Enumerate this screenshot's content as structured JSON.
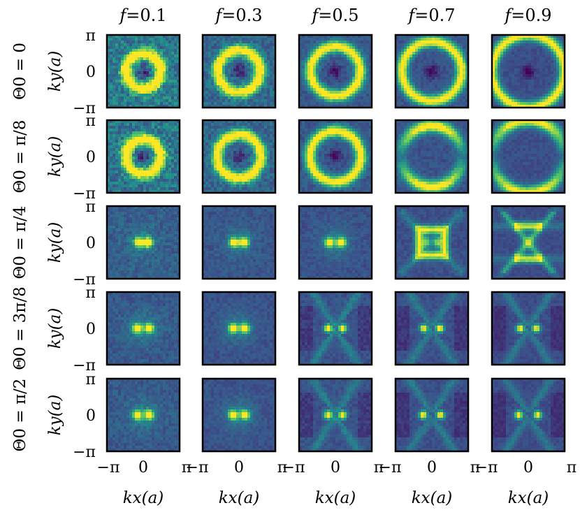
{
  "chart_data": {
    "type": "heatmap",
    "layout": "grid 5x5",
    "column_labels": [
      "f=0.1",
      "f=0.3",
      "f=0.5",
      "f=0.7",
      "f=0.9"
    ],
    "row_labels": [
      "Θ0 = 0",
      "Θ0 = π/8",
      "Θ0 = π/4",
      "Θ0 = 3π/8",
      "Θ0 = π/2"
    ],
    "xlabel": "kx(a)",
    "ylabel": "ky(a)",
    "x_ticks": [
      "−π",
      "0",
      "π"
    ],
    "y_ticks": [
      "π",
      "0",
      "−π"
    ],
    "xlim": [
      -3.1416,
      3.1416
    ],
    "ylim": [
      -3.1416,
      3.1416
    ],
    "colormap": "viridis",
    "colormap_stops": [
      "#440154",
      "#3b528b",
      "#21908d",
      "#5dc963",
      "#fde725"
    ],
    "patterns": [
      [
        "ring",
        "ring",
        "ring",
        "ring",
        "ring"
      ],
      [
        "ring",
        "ring",
        "ring",
        "split-ring",
        "split-ring"
      ],
      [
        "two-peak",
        "two-peak",
        "two-peak",
        "square",
        "bowtie"
      ],
      [
        "two-peak",
        "two-peak",
        "two-peak-cross",
        "two-peak-cross",
        "two-peak-cross"
      ],
      [
        "two-peak",
        "two-peak",
        "two-peak-cross",
        "two-peak-cross",
        "two-peak-cross"
      ]
    ],
    "noise_level": [
      [
        0.9,
        0.65,
        0.4,
        0.3,
        0.25
      ],
      [
        0.85,
        0.6,
        0.4,
        0.3,
        0.25
      ],
      [
        0.5,
        0.35,
        0.3,
        0.25,
        0.2
      ],
      [
        0.4,
        0.3,
        0.3,
        0.25,
        0.2
      ],
      [
        0.4,
        0.3,
        0.3,
        0.25,
        0.2
      ]
    ],
    "ring_radius_frac": [
      [
        0.24,
        0.29,
        0.34,
        0.41,
        0.5
      ],
      [
        0.24,
        0.3,
        0.35,
        0.42,
        0.5
      ],
      [
        0.14,
        0.16,
        0.18,
        0.22,
        0.25
      ],
      [
        0.18,
        0.18,
        0.2,
        0.22,
        0.22
      ],
      [
        0.18,
        0.18,
        0.2,
        0.24,
        0.26
      ]
    ],
    "grid": false
  }
}
